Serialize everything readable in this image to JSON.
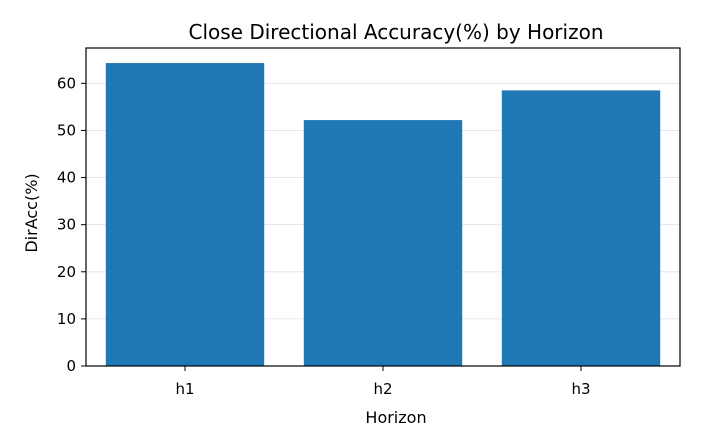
{
  "chart_data": {
    "type": "bar",
    "title": "Close Directional Accuracy(%) by Horizon",
    "xlabel": "Horizon",
    "ylabel": "DirAcc(%)",
    "categories": [
      "h1",
      "h2",
      "h3"
    ],
    "values": [
      64.3,
      52.2,
      58.5
    ],
    "ylim": [
      0,
      67.5
    ],
    "yticks": [
      0,
      10,
      20,
      30,
      40,
      50,
      60
    ],
    "grid": true,
    "bar_color": "#1f77b4",
    "grid_color": "#e6e6e6"
  }
}
